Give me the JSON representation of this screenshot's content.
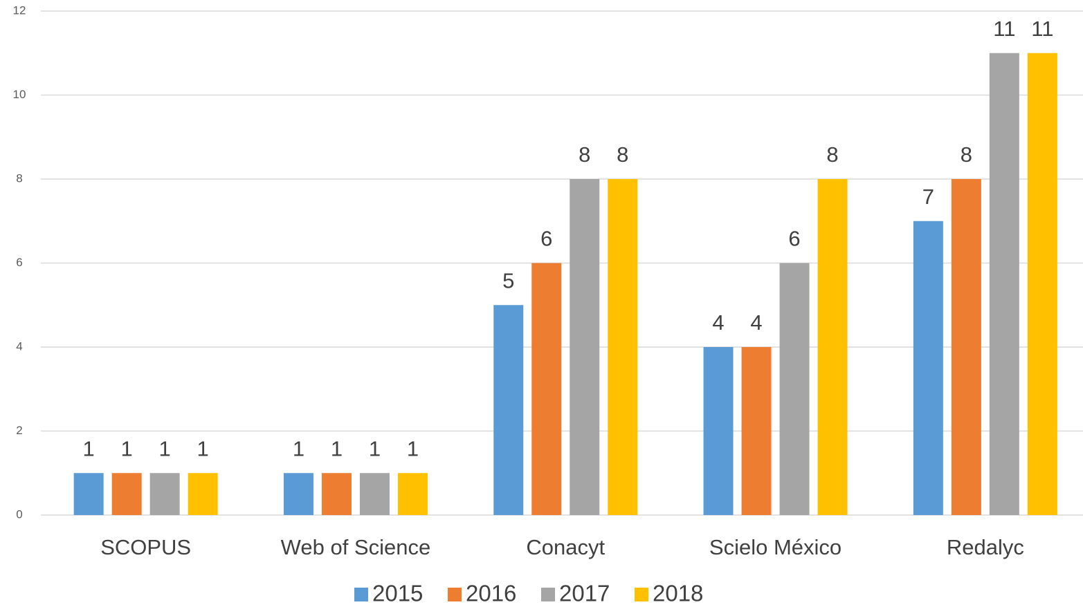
{
  "chart_data": {
    "type": "bar",
    "categories": [
      "SCOPUS",
      "Web of Science",
      "Conacyt",
      "Scielo México",
      "Redalyc"
    ],
    "series": [
      {
        "name": "2015",
        "color": "#5b9bd5",
        "values": [
          1,
          1,
          5,
          4,
          7
        ]
      },
      {
        "name": "2016",
        "color": "#ed7d31",
        "values": [
          1,
          1,
          6,
          4,
          8
        ]
      },
      {
        "name": "2017",
        "color": "#a5a5a5",
        "values": [
          1,
          1,
          8,
          6,
          11
        ]
      },
      {
        "name": "2018",
        "color": "#ffc000",
        "values": [
          1,
          1,
          8,
          8,
          11
        ]
      }
    ],
    "ylim": [
      0,
      12
    ],
    "yticks": [
      0,
      2,
      4,
      6,
      8,
      10,
      12
    ],
    "grid": true,
    "legend": "bottom"
  }
}
